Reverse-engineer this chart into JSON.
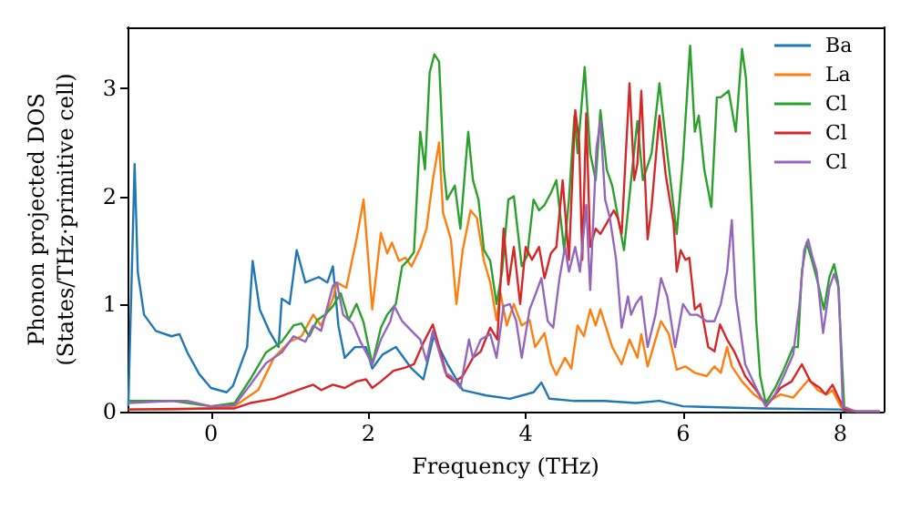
{
  "chart_data": {
    "type": "line",
    "xlabel": "Frequency (THz)",
    "ylabel": "Phonon projected DOS\n(States/THz·primitive cell)",
    "xlim": [
      -1.06,
      8.55
    ],
    "ylim": [
      0,
      3.57
    ],
    "xticks": [
      0,
      2,
      4,
      6,
      8
    ],
    "yticks": [
      0,
      1,
      2,
      3
    ],
    "grid": false,
    "legend": "top right",
    "series": [
      {
        "name": "Ba",
        "color": "#1f77b4",
        "x": [
          -1.05,
          -0.97,
          -0.93,
          -0.85,
          -0.7,
          -0.5,
          -0.4,
          -0.3,
          -0.15,
          0,
          0.2,
          0.28,
          0.46,
          0.53,
          0.62,
          0.74,
          0.86,
          0.9,
          1.0,
          1.09,
          1.2,
          1.37,
          1.48,
          1.55,
          1.62,
          1.7,
          1.83,
          1.97,
          2.05,
          2.18,
          2.35,
          2.55,
          2.7,
          2.83,
          3.0,
          3.2,
          3.5,
          3.8,
          4.1,
          4.2,
          4.3,
          4.6,
          5.0,
          5.4,
          5.7,
          6.0,
          7.0,
          8.0,
          8.1,
          8.5
        ],
        "values": [
          0.05,
          2.3,
          1.3,
          0.9,
          0.75,
          0.7,
          0.72,
          0.55,
          0.35,
          0.22,
          0.18,
          0.24,
          0.6,
          1.4,
          0.95,
          0.75,
          0.6,
          1.05,
          1.0,
          1.5,
          1.2,
          1.25,
          1.2,
          1.35,
          0.8,
          0.5,
          0.6,
          0.6,
          0.4,
          0.53,
          0.6,
          0.4,
          0.3,
          0.7,
          0.45,
          0.2,
          0.15,
          0.12,
          0.18,
          0.27,
          0.12,
          0.1,
          0.1,
          0.08,
          0.1,
          0.05,
          0.03,
          0.02,
          0,
          0
        ]
      },
      {
        "name": "La",
        "color": "#ff7f0e",
        "x": [
          -1.05,
          -0.5,
          0,
          0.3,
          0.6,
          0.8,
          1.0,
          1.15,
          1.3,
          1.4,
          1.55,
          1.6,
          1.72,
          1.85,
          1.94,
          2.05,
          2.16,
          2.24,
          2.3,
          2.39,
          2.47,
          2.55,
          2.66,
          2.74,
          2.82,
          2.9,
          2.95,
          3.05,
          3.12,
          3.2,
          3.3,
          3.38,
          3.47,
          3.55,
          3.63,
          3.68,
          3.76,
          3.85,
          3.95,
          4.05,
          4.12,
          4.24,
          4.32,
          4.39,
          4.5,
          4.58,
          4.66,
          4.74,
          4.82,
          4.89,
          4.95,
          5.1,
          5.22,
          5.32,
          5.42,
          5.47,
          5.55,
          5.65,
          5.72,
          5.82,
          5.92,
          6.03,
          6.15,
          6.3,
          6.4,
          6.48,
          6.56,
          6.62,
          6.75,
          6.9,
          7.05,
          7.24,
          7.4,
          7.6,
          7.71,
          7.83,
          7.9,
          8.0,
          8.05,
          8.2,
          8.5
        ],
        "values": [
          0.02,
          0.02,
          0.03,
          0.05,
          0.2,
          0.5,
          0.65,
          0.7,
          0.9,
          0.8,
          1.05,
          1.2,
          1.15,
          1.6,
          1.97,
          0.95,
          1.66,
          1.47,
          1.57,
          1.4,
          1.43,
          1.35,
          1.52,
          1.7,
          2.15,
          2.5,
          1.85,
          1.6,
          1.0,
          1.5,
          1.87,
          1.8,
          1.4,
          1.2,
          0.85,
          1.1,
          0.8,
          1.0,
          0.8,
          0.85,
          0.6,
          0.73,
          0.45,
          0.34,
          0.5,
          0.4,
          0.8,
          0.7,
          0.95,
          0.8,
          0.95,
          0.6,
          0.44,
          0.67,
          0.5,
          0.72,
          0.42,
          0.67,
          0.84,
          0.72,
          0.39,
          0.42,
          0.36,
          0.33,
          0.42,
          0.36,
          0.6,
          0.42,
          0.28,
          0.16,
          0.08,
          0.16,
          0.13,
          0.3,
          0.2,
          0.16,
          0.2,
          0.05,
          0.02,
          0,
          0
        ]
      },
      {
        "name": "Cl",
        "color": "#2ca02c",
        "x": [
          -1.05,
          -0.5,
          0,
          0.3,
          0.5,
          0.7,
          0.9,
          1.05,
          1.15,
          1.25,
          1.35,
          1.45,
          1.55,
          1.65,
          1.75,
          1.85,
          1.94,
          2.05,
          2.16,
          2.24,
          2.35,
          2.43,
          2.5,
          2.58,
          2.66,
          2.72,
          2.78,
          2.84,
          2.9,
          2.96,
          3.0,
          3.1,
          3.17,
          3.27,
          3.33,
          3.4,
          3.47,
          3.55,
          3.63,
          3.7,
          3.78,
          3.85,
          3.95,
          4.02,
          4.1,
          4.17,
          4.24,
          4.32,
          4.39,
          4.49,
          4.55,
          4.62,
          4.66,
          4.75,
          4.82,
          4.89,
          4.95,
          5.03,
          5.1,
          5.25,
          5.34,
          5.42,
          5.49,
          5.6,
          5.7,
          5.8,
          5.92,
          6.0,
          6.09,
          6.15,
          6.2,
          6.27,
          6.36,
          6.43,
          6.48,
          6.58,
          6.67,
          6.75,
          6.8,
          6.87,
          6.93,
          6.98,
          7.05,
          7.17,
          7.28,
          7.4,
          7.46,
          7.51,
          7.57,
          7.64,
          7.72,
          7.79,
          7.86,
          7.92,
          7.97,
          8.05,
          8.2,
          8.5
        ],
        "values": [
          0.1,
          0.1,
          0.05,
          0.08,
          0.3,
          0.55,
          0.65,
          0.8,
          0.82,
          0.7,
          0.85,
          0.9,
          0.98,
          1.1,
          0.85,
          1.0,
          0.83,
          0.44,
          0.78,
          0.9,
          1.0,
          1.35,
          1.4,
          1.48,
          2.6,
          2.25,
          3.15,
          3.32,
          3.25,
          2.25,
          1.97,
          2.1,
          1.7,
          2.6,
          2.15,
          1.97,
          1.5,
          1.4,
          1.0,
          1.3,
          1.97,
          2.0,
          1.35,
          1.45,
          1.97,
          1.87,
          1.92,
          2.03,
          2.15,
          1.5,
          1.97,
          2.75,
          2.4,
          3.2,
          2.4,
          2.15,
          2.8,
          2.25,
          2.1,
          1.5,
          2.15,
          2.7,
          2.15,
          2.4,
          3.05,
          2.4,
          1.65,
          2.35,
          3.4,
          2.6,
          2.75,
          2.25,
          1.9,
          2.92,
          2.92,
          2.98,
          2.6,
          3.37,
          3.1,
          1.97,
          0.84,
          0.33,
          0.08,
          0.22,
          0.39,
          0.6,
          0.6,
          1.3,
          1.57,
          1.4,
          1.18,
          0.95,
          1.25,
          1.37,
          1.2,
          0.03,
          0,
          0
        ]
      },
      {
        "name": "Cl",
        "color": "#d62728",
        "x": [
          -1.05,
          0,
          0.3,
          0.5,
          0.8,
          1.1,
          1.3,
          1.4,
          1.55,
          1.7,
          1.85,
          1.97,
          2.05,
          2.16,
          2.32,
          2.47,
          2.58,
          2.7,
          2.82,
          2.9,
          3.0,
          3.1,
          3.2,
          3.33,
          3.43,
          3.55,
          3.64,
          3.72,
          3.78,
          3.85,
          3.93,
          4.0,
          4.08,
          4.17,
          4.24,
          4.32,
          4.39,
          4.47,
          4.55,
          4.63,
          4.68,
          4.72,
          4.77,
          4.82,
          4.89,
          4.95,
          5.03,
          5.12,
          5.17,
          5.22,
          5.32,
          5.38,
          5.42,
          5.47,
          5.55,
          5.6,
          5.7,
          5.78,
          5.88,
          5.92,
          5.97,
          6.03,
          6.08,
          6.15,
          6.22,
          6.32,
          6.4,
          6.47,
          6.56,
          6.65,
          6.79,
          6.94,
          7.06,
          7.24,
          7.38,
          7.51,
          7.62,
          7.74,
          7.81,
          7.9,
          7.97,
          8.05,
          8.2,
          8.5
        ],
        "values": [
          0.02,
          0.03,
          0.03,
          0.08,
          0.12,
          0.2,
          0.25,
          0.2,
          0.25,
          0.22,
          0.28,
          0.3,
          0.22,
          0.28,
          0.38,
          0.41,
          0.44,
          0.64,
          0.81,
          0.6,
          0.33,
          0.28,
          0.33,
          0.5,
          0.56,
          0.78,
          0.67,
          1.7,
          1.18,
          1.53,
          1.0,
          1.53,
          1.41,
          1.53,
          1.24,
          1.47,
          1.53,
          2.15,
          1.41,
          2.8,
          2.5,
          1.41,
          2.77,
          1.53,
          1.7,
          1.65,
          1.75,
          1.87,
          1.8,
          1.65,
          3.05,
          2.15,
          2.3,
          2.98,
          1.6,
          1.9,
          2.75,
          2.2,
          1.75,
          1.3,
          1.5,
          1.41,
          1.43,
          0.95,
          1.0,
          0.6,
          0.56,
          0.81,
          0.67,
          0.56,
          0.33,
          0.19,
          0.05,
          0.22,
          0.28,
          0.44,
          0.28,
          0.22,
          0.16,
          0.25,
          0.14,
          0.02,
          0,
          0
        ]
      },
      {
        "name": "Cl",
        "color": "#9467bd",
        "x": [
          -1.05,
          -0.5,
          -0.3,
          0,
          0.3,
          0.5,
          0.7,
          0.9,
          1.05,
          1.2,
          1.3,
          1.4,
          1.55,
          1.6,
          1.68,
          1.8,
          1.9,
          2.05,
          2.16,
          2.28,
          2.33,
          2.43,
          2.55,
          2.66,
          2.74,
          2.82,
          2.9,
          2.98,
          3.05,
          3.17,
          3.28,
          3.33,
          3.43,
          3.55,
          3.63,
          3.72,
          3.8,
          3.88,
          3.95,
          4.05,
          4.13,
          4.2,
          4.28,
          4.35,
          4.43,
          4.5,
          4.55,
          4.63,
          4.69,
          4.77,
          4.82,
          4.9,
          4.95,
          5.01,
          5.07,
          5.15,
          5.22,
          5.3,
          5.34,
          5.4,
          5.47,
          5.55,
          5.65,
          5.72,
          5.8,
          5.9,
          6.0,
          6.09,
          6.18,
          6.3,
          6.4,
          6.48,
          6.56,
          6.62,
          6.67,
          6.79,
          6.93,
          7.05,
          7.17,
          7.28,
          7.4,
          7.48,
          7.54,
          7.59,
          7.64,
          7.7,
          7.78,
          7.86,
          7.92,
          7.98,
          8.03,
          8.2,
          8.5
        ],
        "values": [
          0.08,
          0.1,
          0.1,
          0.05,
          0.06,
          0.25,
          0.45,
          0.55,
          0.7,
          0.65,
          0.8,
          0.75,
          1.17,
          1.2,
          0.9,
          0.82,
          0.65,
          0.44,
          0.67,
          0.84,
          0.98,
          0.84,
          0.75,
          0.67,
          0.47,
          0.75,
          0.56,
          0.36,
          0.33,
          0.22,
          0.67,
          0.5,
          0.67,
          0.72,
          0.5,
          0.98,
          1.0,
          0.84,
          0.5,
          0.95,
          1.1,
          1.24,
          0.84,
          0.78,
          1.24,
          1.53,
          1.3,
          1.53,
          1.3,
          1.92,
          1.13,
          2.45,
          2.7,
          1.97,
          1.8,
          1.41,
          0.78,
          1.07,
          0.9,
          1.0,
          1.07,
          0.6,
          0.9,
          1.24,
          1.07,
          0.6,
          1.0,
          0.9,
          0.9,
          0.84,
          0.84,
          1.0,
          1.3,
          1.78,
          1.07,
          0.44,
          0.22,
          0.05,
          0.16,
          0.33,
          0.53,
          1.0,
          1.5,
          1.6,
          1.45,
          1.3,
          0.73,
          1.15,
          1.28,
          1.15,
          0.05,
          0,
          0
        ]
      }
    ]
  }
}
